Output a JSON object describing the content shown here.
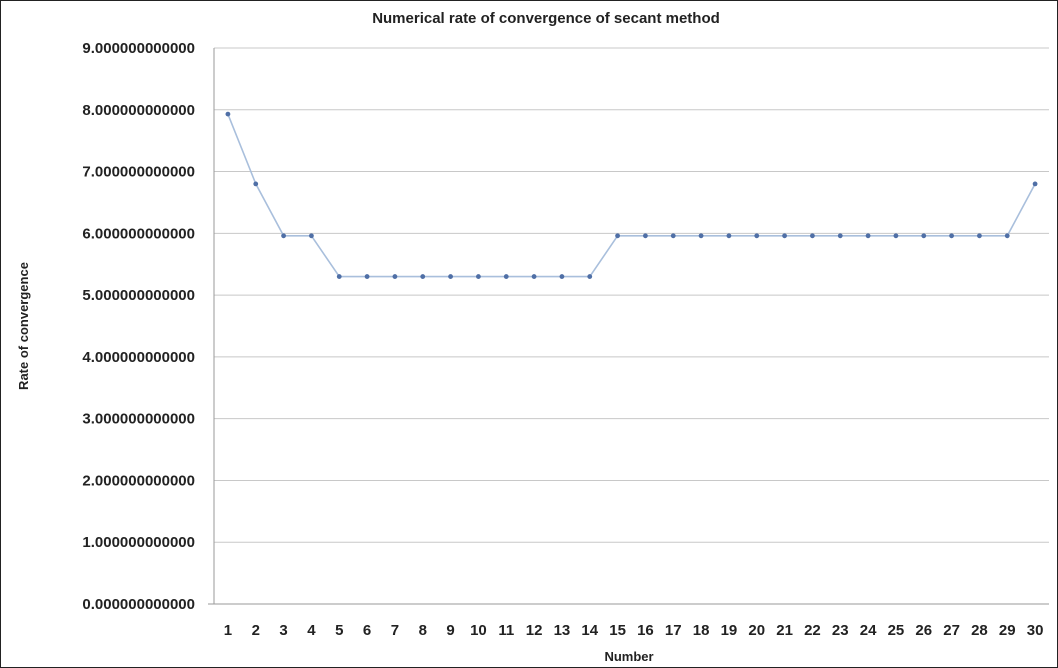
{
  "chart_data": {
    "type": "line",
    "title": "Numerical rate of convergence of secant method",
    "xlabel": "Number",
    "ylabel": "Rate of convergence",
    "ylim": [
      0,
      9
    ],
    "ytick_labels": [
      "0.000000000000",
      "1.000000000000",
      "2.000000000000",
      "3.000000000000",
      "4.000000000000",
      "5.000000000000",
      "6.000000000000",
      "7.000000000000",
      "8.000000000000",
      "9.000000000000"
    ],
    "categories": [
      "1",
      "2",
      "3",
      "4",
      "5",
      "6",
      "7",
      "8",
      "9",
      "10",
      "11",
      "12",
      "13",
      "14",
      "15",
      "16",
      "17",
      "18",
      "19",
      "20",
      "21",
      "22",
      "23",
      "24",
      "25",
      "26",
      "27",
      "28",
      "29",
      "30"
    ],
    "series": [
      {
        "values": [
          7.93,
          6.8,
          5.96,
          5.96,
          5.3,
          5.3,
          5.3,
          5.3,
          5.3,
          5.3,
          5.3,
          5.3,
          5.3,
          5.3,
          5.96,
          5.96,
          5.96,
          5.96,
          5.96,
          5.96,
          5.96,
          5.96,
          5.96,
          5.96,
          5.96,
          5.96,
          5.96,
          5.96,
          5.96,
          6.8
        ]
      }
    ],
    "grid": true,
    "legend": "none",
    "colors": {
      "line": "#a9bfdc",
      "marker": "#4f6fa6",
      "grid": "#c8c8c8"
    }
  }
}
